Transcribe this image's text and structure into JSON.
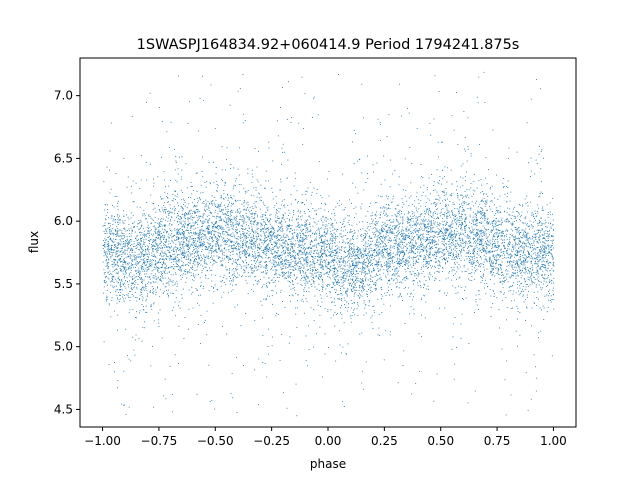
{
  "chart_data": {
    "type": "scatter",
    "title": "1SWASPJ164834.92+060414.9 Period 1794241.875s",
    "xlabel": "phase",
    "ylabel": "flux",
    "xlim": [
      -1.1,
      1.1
    ],
    "ylim": [
      4.36,
      7.3
    ],
    "x_ticks": [
      -1.0,
      -0.75,
      -0.5,
      -0.25,
      0.0,
      0.25,
      0.5,
      0.75,
      1.0
    ],
    "x_tick_labels": [
      "−1.00",
      "−0.75",
      "−0.50",
      "−0.25",
      "0.00",
      "0.25",
      "0.50",
      "0.75",
      "1.00"
    ],
    "y_ticks": [
      4.5,
      5.0,
      5.5,
      6.0,
      6.5,
      7.0
    ],
    "y_tick_labels": [
      "4.5",
      "5.0",
      "5.5",
      "6.0",
      "6.5",
      "7.0"
    ],
    "grid": false,
    "legend": null,
    "marker_color": "#1f77b4",
    "series": [
      {
        "x_range": [
          -1.0,
          1.0
        ],
        "points_approx": 9000,
        "y_median": 5.8,
        "y_core_spread": [
          5.3,
          6.4
        ],
        "y_outlier_range": [
          4.45,
          7.2
        ],
        "phase_profile": [
          {
            "phase": -0.95,
            "median_flux": 5.75
          },
          {
            "phase": -0.85,
            "median_flux": 5.65
          },
          {
            "phase": -0.75,
            "median_flux": 5.8
          },
          {
            "phase": -0.6,
            "median_flux": 5.85
          },
          {
            "phase": -0.45,
            "median_flux": 5.9
          },
          {
            "phase": -0.3,
            "median_flux": 5.85
          },
          {
            "phase": -0.15,
            "median_flux": 5.75
          },
          {
            "phase": 0.0,
            "median_flux": 5.75
          },
          {
            "phase": 0.05,
            "median_flux": 5.65
          },
          {
            "phase": 0.15,
            "median_flux": 5.65
          },
          {
            "phase": 0.25,
            "median_flux": 5.8
          },
          {
            "phase": 0.4,
            "median_flux": 5.85
          },
          {
            "phase": 0.55,
            "median_flux": 5.9
          },
          {
            "phase": 0.7,
            "median_flux": 5.85
          },
          {
            "phase": 0.85,
            "median_flux": 5.75
          },
          {
            "phase": 1.0,
            "median_flux": 5.75
          }
        ]
      }
    ]
  }
}
